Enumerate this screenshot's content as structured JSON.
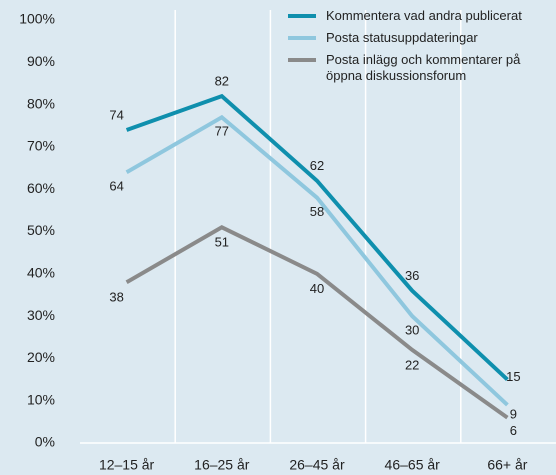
{
  "chart_data": {
    "type": "line",
    "categories": [
      "12–15 år",
      "16–25 år",
      "26–45 år",
      "46–65 år",
      "66+ år"
    ],
    "series": [
      {
        "name": "Kommentera vad andra publicerat",
        "color": "#0f8fad",
        "values": [
          74,
          82,
          62,
          36,
          15
        ]
      },
      {
        "name": "Posta statusuppdateringar",
        "color": "#8fc7de",
        "values": [
          64,
          77,
          58,
          30,
          9
        ]
      },
      {
        "name": "Posta inlägg och kommentarer på öppna diskussionsforum",
        "color": "#8a8a8a",
        "values": [
          38,
          51,
          40,
          22,
          6
        ]
      }
    ],
    "ylim": [
      0,
      100
    ],
    "yticks": [
      {
        "value": 0,
        "label": "0%"
      },
      {
        "value": 10,
        "label": "10%"
      },
      {
        "value": 20,
        "label": "20%"
      },
      {
        "value": 30,
        "label": "30%"
      },
      {
        "value": 40,
        "label": "40%"
      },
      {
        "value": 50,
        "label": "50%"
      },
      {
        "value": 60,
        "label": "60%"
      },
      {
        "value": 70,
        "label": "70%"
      },
      {
        "value": 80,
        "label": "80%"
      },
      {
        "value": 90,
        "label": "90%"
      },
      {
        "value": 100,
        "label": "100%"
      }
    ],
    "legend": "top-right"
  }
}
